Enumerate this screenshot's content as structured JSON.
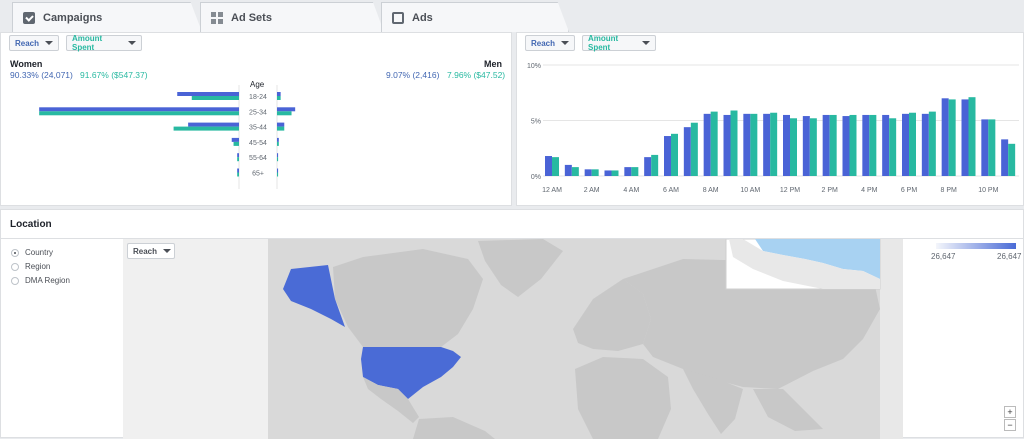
{
  "tabs": [
    {
      "label": "Campaigns",
      "icon": "folder-check-icon"
    },
    {
      "label": "Ad Sets",
      "icon": "grid-icon"
    },
    {
      "label": "Ads",
      "icon": "ad-icon"
    }
  ],
  "age_panel": {
    "reach_dropdown": "Reach",
    "amount_dropdown": "Amount Spent",
    "women_label": "Women",
    "men_label": "Men",
    "women_reach": "90.33% (24,071)",
    "women_spent": "91.67% ($547.37)",
    "men_reach": "9.07% (2,416)",
    "men_spent": "7.96% ($47.52)",
    "age_label": "Age"
  },
  "time_panel": {
    "reach_dropdown": "Reach",
    "amount_dropdown": "Amount Spent"
  },
  "location": {
    "title": "Location",
    "options": [
      "Country",
      "Region",
      "DMA Region"
    ],
    "selected": "Country",
    "map_dropdown": "Reach",
    "legend_min": "26,647",
    "legend_max": "26,647",
    "zoom_in": "+",
    "zoom_out": "−"
  },
  "colors": {
    "reach": "#4a63d6",
    "spent": "#28b9a1"
  },
  "chart_data": [
    {
      "type": "bar",
      "orientation": "horizontal-diverging",
      "categories": [
        "18-24",
        "25-34",
        "35-44",
        "45-54",
        "55-64",
        "65+"
      ],
      "series": [
        {
          "name": "Reach",
          "women": [
            17,
            55,
            14,
            2,
            0.5,
            0.5
          ],
          "men": [
            1,
            5,
            2,
            0.5,
            0.3,
            0.3
          ]
        },
        {
          "name": "Amount Spent",
          "women": [
            13,
            55,
            18,
            1.5,
            0.5,
            0.5
          ],
          "men": [
            1,
            4,
            2,
            0.5,
            0.3,
            0.3
          ]
        }
      ],
      "xticks": [
        "60%",
        "50%",
        "40%",
        "30%",
        "20%",
        "10%",
        "0%",
        "0%",
        "10%",
        "20%",
        "30%",
        "40%",
        "50%",
        "60%"
      ],
      "xlim": [
        -60,
        60
      ]
    },
    {
      "type": "bar",
      "x": [
        0,
        1,
        2,
        3,
        4,
        5,
        6,
        7,
        8,
        9,
        10,
        11,
        12,
        13,
        14,
        15,
        16,
        17,
        18,
        19,
        20,
        21,
        22,
        23
      ],
      "xticks": [
        "12 AM",
        "2 AM",
        "4 AM",
        "6 AM",
        "8 AM",
        "10 AM",
        "12 PM",
        "2 PM",
        "4 PM",
        "6 PM",
        "8 PM",
        "10 PM"
      ],
      "series": [
        {
          "name": "Reach",
          "values": [
            1.8,
            1.0,
            0.6,
            0.5,
            0.8,
            1.7,
            3.6,
            4.4,
            5.6,
            5.5,
            5.6,
            5.6,
            5.5,
            5.4,
            5.5,
            5.4,
            5.5,
            5.5,
            5.6,
            5.6,
            7.0,
            6.9,
            5.1,
            3.3
          ]
        },
        {
          "name": "Amount Spent",
          "values": [
            1.7,
            0.8,
            0.6,
            0.5,
            0.8,
            1.9,
            3.8,
            4.8,
            5.8,
            5.9,
            5.6,
            5.7,
            5.2,
            5.2,
            5.5,
            5.5,
            5.5,
            5.2,
            5.7,
            5.8,
            6.9,
            7.1,
            5.1,
            2.9
          ]
        }
      ],
      "yticks": [
        "10%",
        "5%",
        "0%"
      ],
      "ylim": [
        0,
        10
      ],
      "grid": true
    }
  ]
}
